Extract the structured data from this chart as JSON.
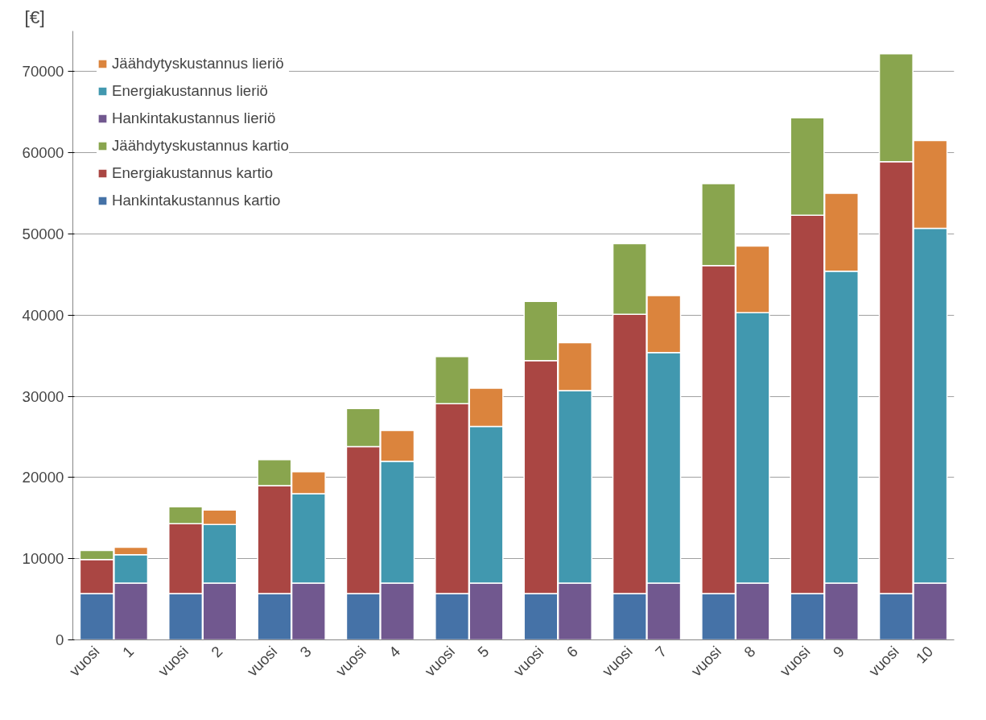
{
  "chart_data": {
    "type": "bar",
    "stacked": true,
    "ylabel": "[€]",
    "categories": [
      "vuosi",
      "1",
      "vuosi",
      "2",
      "vuosi",
      "3",
      "vuosi",
      "4",
      "vuosi",
      "5",
      "vuosi",
      "6",
      "vuosi",
      "7",
      "vuosi",
      "8",
      "vuosi",
      "9",
      "vuosi",
      "10"
    ],
    "series": [
      {
        "name": "Hankintakustannus kartio",
        "color": "#4572a7",
        "values": [
          5700,
          null,
          5700,
          null,
          5700,
          null,
          5700,
          null,
          5700,
          null,
          5700,
          null,
          5700,
          null,
          5700,
          null,
          5700,
          null,
          5700,
          null
        ]
      },
      {
        "name": "Energiakustannus kartio",
        "color": "#aa4643",
        "values": [
          4200,
          null,
          8600,
          null,
          13300,
          null,
          18100,
          null,
          23400,
          null,
          28700,
          null,
          34400,
          null,
          40400,
          null,
          46600,
          null,
          53200,
          null
        ]
      },
      {
        "name": "Jäähdytyskustannus kartio",
        "color": "#89a54e",
        "values": [
          1100,
          null,
          2100,
          null,
          3200,
          null,
          4700,
          null,
          5800,
          null,
          7300,
          null,
          8700,
          null,
          10100,
          null,
          12000,
          null,
          13300,
          null
        ]
      },
      {
        "name": "Hankintakustannus lieriö",
        "color": "#71588f",
        "values": [
          null,
          7000,
          null,
          7000,
          null,
          7000,
          null,
          7000,
          null,
          7000,
          null,
          7000,
          null,
          7000,
          null,
          7000,
          null,
          7000,
          null,
          7000
        ]
      },
      {
        "name": "Energiakustannus lieriö",
        "color": "#4198af",
        "values": [
          null,
          3500,
          null,
          7200,
          null,
          11000,
          null,
          15000,
          null,
          19300,
          null,
          23700,
          null,
          28400,
          null,
          33300,
          null,
          38400,
          null,
          43700
        ]
      },
      {
        "name": "Jäähdytyskustannus lieriö",
        "color": "#db843d",
        "values": [
          null,
          900,
          null,
          1800,
          null,
          2700,
          null,
          3800,
          null,
          4700,
          null,
          5900,
          null,
          7000,
          null,
          8200,
          null,
          9600,
          null,
          10800
        ]
      }
    ],
    "ylim": [
      0,
      75000
    ],
    "yticks": [
      0,
      10000,
      20000,
      30000,
      40000,
      50000,
      60000,
      70000
    ],
    "grid": "y",
    "legend": "top left"
  }
}
